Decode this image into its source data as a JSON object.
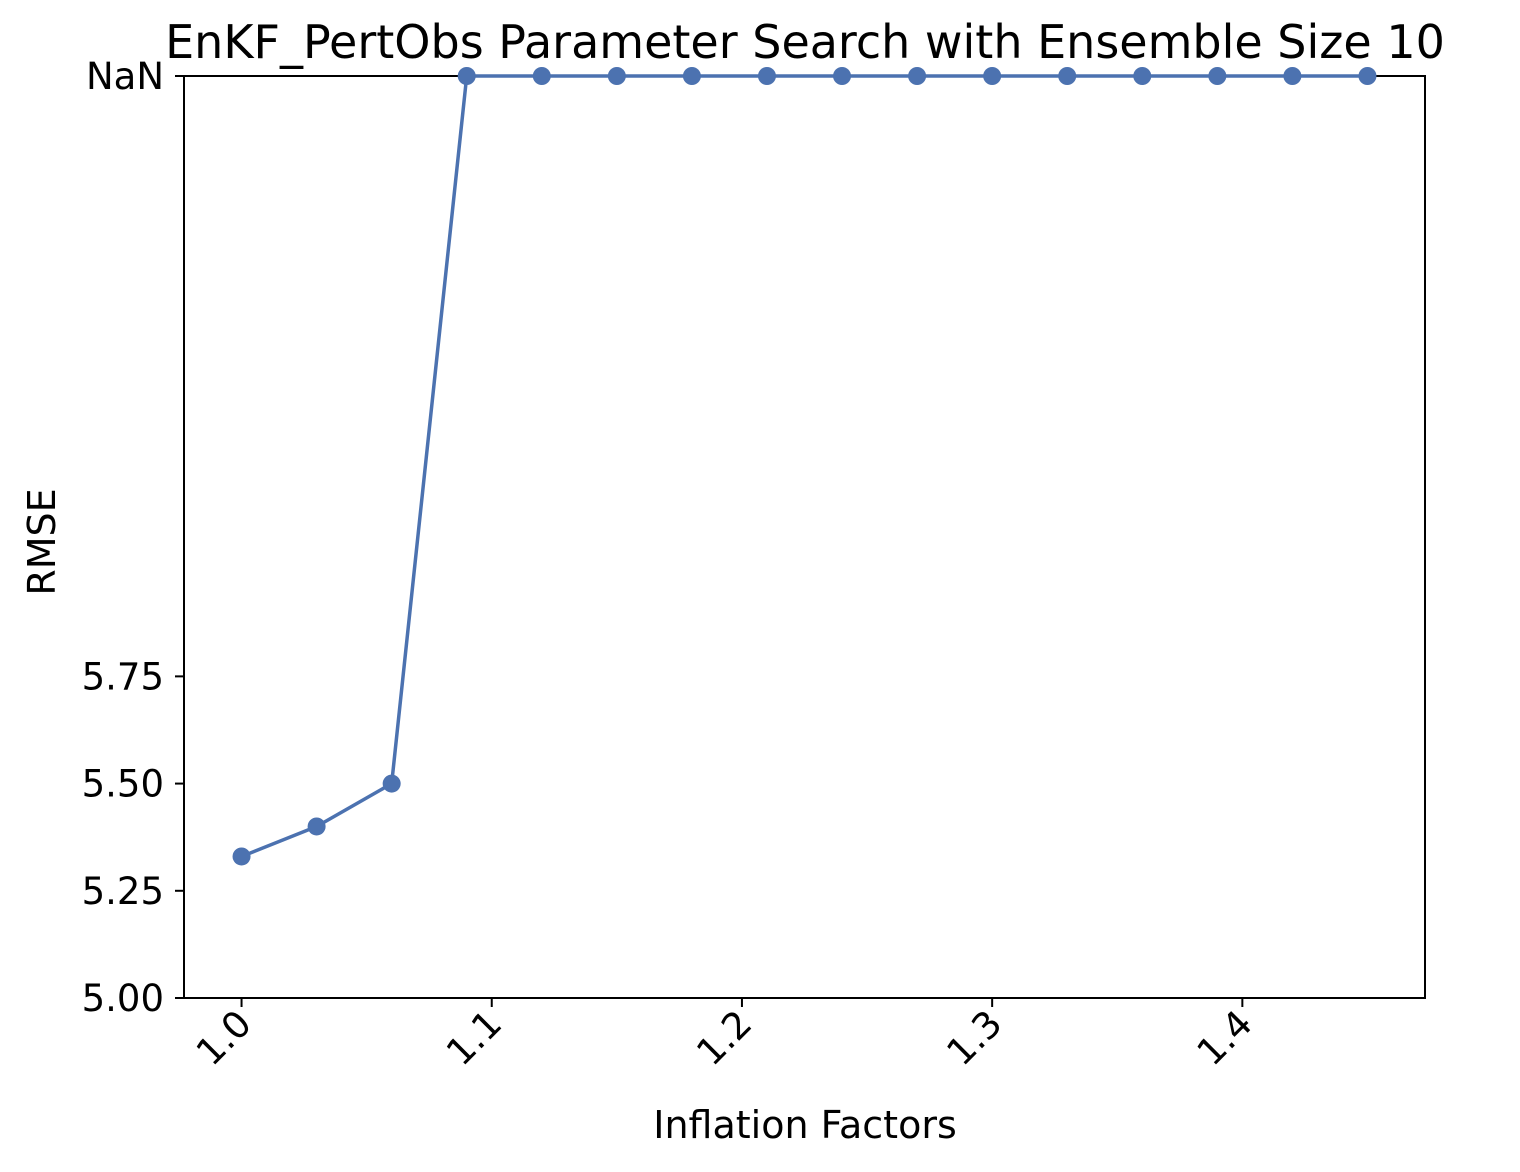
{
  "chart_data": {
    "type": "line",
    "title": "EnKF_PertObs Parameter Search with Ensemble Size 10",
    "xlabel": "Inflation Factors",
    "ylabel": "RMSE",
    "x": [
      1.0,
      1.03,
      1.06,
      1.09,
      1.12,
      1.15,
      1.18,
      1.21,
      1.24,
      1.27,
      1.3,
      1.33,
      1.36,
      1.39,
      1.42,
      1.45
    ],
    "series": [
      {
        "values": [
          5.33,
          5.4,
          5.5,
          "NaN",
          "NaN",
          "NaN",
          "NaN",
          "NaN",
          "NaN",
          "NaN",
          "NaN",
          "NaN",
          "NaN",
          "NaN",
          "NaN",
          "NaN"
        ],
        "color": "#4c72b0",
        "marker": "circle"
      }
    ],
    "x_ticks": [
      "1.0",
      "1.1",
      "1.2",
      "1.3",
      "1.4"
    ],
    "x_tick_rotation_deg": 45,
    "y_ticks": [
      "5.00",
      "5.25",
      "5.50",
      "5.75",
      "NaN"
    ],
    "xlim": [
      0.977,
      1.473
    ],
    "ylim": [
      5.0,
      7.15
    ],
    "nan_plotted_at": 7.15,
    "grid": false,
    "legend": "none"
  }
}
